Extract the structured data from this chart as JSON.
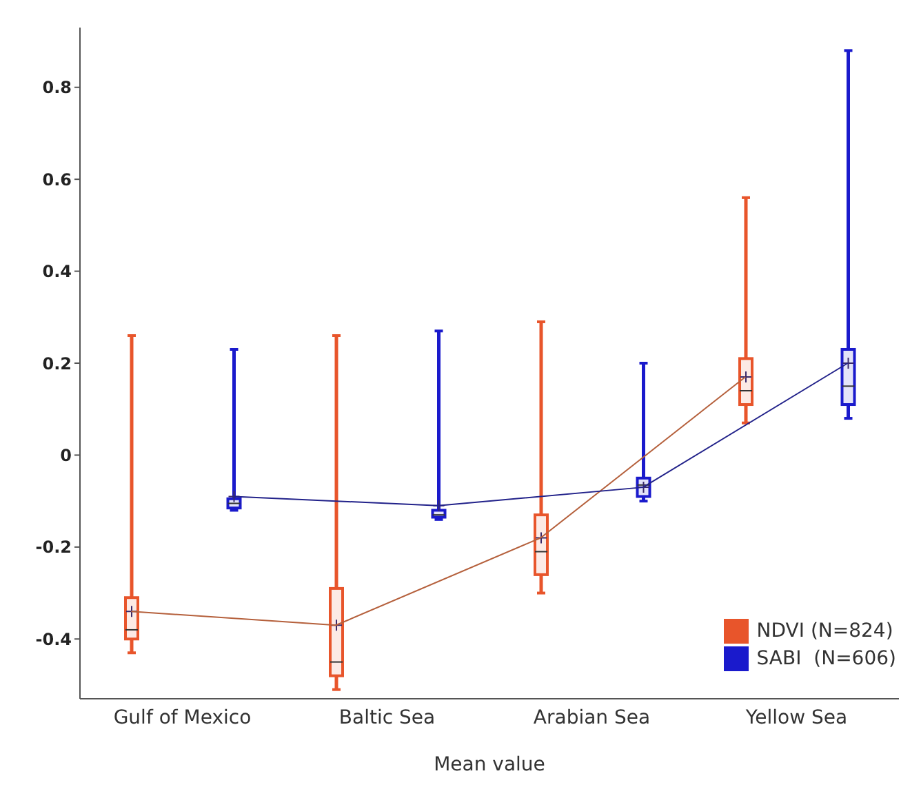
{
  "chart_data": {
    "type": "box",
    "xlabel": "Mean value",
    "categories": [
      "Gulf of Mexico",
      "Baltic Sea",
      "Arabian Sea",
      "Yellow Sea"
    ],
    "ylim": [
      -0.53,
      0.93
    ],
    "yticks": [
      {
        "value": -0.4,
        "label": "-0.4"
      },
      {
        "value": -0.2,
        "label": "-0.2"
      },
      {
        "value": 0,
        "label": "0"
      },
      {
        "value": 0.2,
        "label": "0.2"
      },
      {
        "value": 0.4,
        "label": "0.4"
      },
      {
        "value": 0.6,
        "label": "0.6"
      },
      {
        "value": 0.8,
        "label": "0.8"
      }
    ],
    "grid": false,
    "legend": "bottom right",
    "series": [
      {
        "name": "NDVI (N=824)",
        "color": "#e8552b",
        "boxes": [
          {
            "low": -0.43,
            "q1": -0.4,
            "median": -0.38,
            "q3": -0.31,
            "high": 0.26,
            "mean": -0.34
          },
          {
            "low": -0.51,
            "q1": -0.48,
            "median": -0.45,
            "q3": -0.29,
            "high": 0.26,
            "mean": -0.37
          },
          {
            "low": -0.3,
            "q1": -0.26,
            "median": -0.21,
            "q3": -0.13,
            "high": 0.29,
            "mean": -0.18
          },
          {
            "low": 0.07,
            "q1": 0.11,
            "median": 0.14,
            "q3": 0.21,
            "high": 0.56,
            "mean": 0.17
          }
        ]
      },
      {
        "name": "SABI  (N=606)",
        "color": "#1a1acc",
        "boxes": [
          {
            "low": -0.12,
            "q1": -0.115,
            "median": -0.105,
            "q3": -0.095,
            "high": 0.23,
            "mean": -0.09
          },
          {
            "low": -0.14,
            "q1": -0.135,
            "median": -0.13,
            "q3": -0.12,
            "high": 0.27,
            "mean": -0.11
          },
          {
            "low": -0.1,
            "q1": -0.09,
            "median": -0.065,
            "q3": -0.05,
            "high": 0.2,
            "mean": -0.07
          },
          {
            "low": 0.08,
            "q1": 0.11,
            "median": 0.15,
            "q3": 0.23,
            "high": 0.88,
            "mean": 0.2
          }
        ]
      },
      {
        "type": "line",
        "color": "#b5603c",
        "values": [
          -0.34,
          -0.37,
          -0.18,
          0.17
        ]
      },
      {
        "type": "line",
        "color": "#22228a",
        "values": [
          -0.09,
          -0.11,
          -0.07,
          0.2
        ]
      }
    ]
  }
}
